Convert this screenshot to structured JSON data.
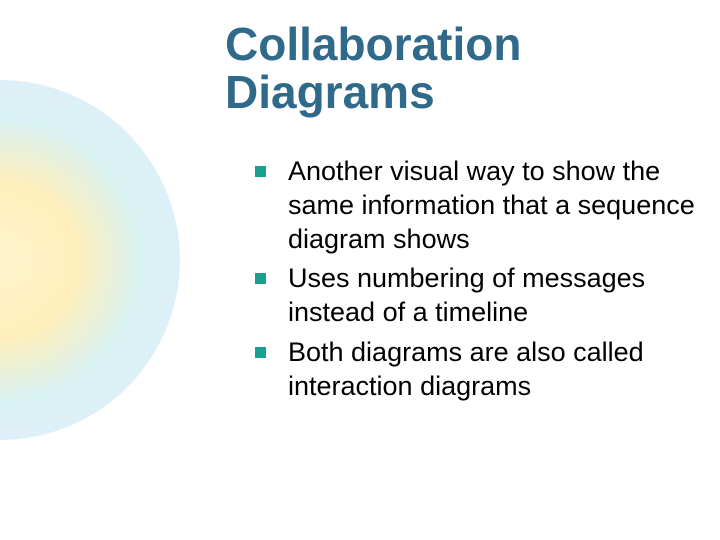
{
  "title": "Collaboration\nDiagrams",
  "title_color": "#2f6a8a",
  "body_text_color": "#000000",
  "bullet_marker_color": "#1aa08f",
  "background_color": "#ffffff",
  "title_fontsize": 46,
  "body_fontsize": 27,
  "bullets": [
    {
      "text": "Another visual way to show the same information that a sequence diagram shows"
    },
    {
      "text": "Uses numbering of messages instead of a timeline"
    },
    {
      "text": "Both diagrams are also called interaction diagrams"
    }
  ],
  "gradient": {
    "inner": "#fff2c8",
    "mid": "#c8ebeb",
    "outer": "#bee1f5"
  }
}
